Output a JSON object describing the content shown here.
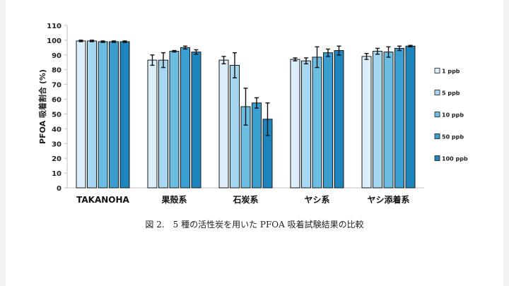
{
  "chart_data": {
    "type": "bar",
    "ylabel": "PFOA 吸着割合 (%)",
    "ylim": [
      0,
      110
    ],
    "yticks": [
      0,
      10,
      20,
      30,
      40,
      50,
      60,
      70,
      80,
      90,
      100,
      110
    ],
    "categories": [
      "TAKANOHA",
      "果殻系",
      "石炭系",
      "ヤシ系",
      "ヤシ添着系"
    ],
    "legend_position": "right",
    "grid": false,
    "series": [
      {
        "name": "1 ppb",
        "color": "#dbeefa",
        "values": [
          99.5,
          86.5,
          86.5,
          87.0,
          89.0
        ],
        "errors": [
          0.5,
          3.5,
          2.5,
          1.0,
          2.0
        ]
      },
      {
        "name": "5 ppb",
        "color": "#a7d6f0",
        "values": [
          99.5,
          86.5,
          83.0,
          86.0,
          92.5
        ],
        "errors": [
          0.5,
          5.0,
          8.5,
          2.0,
          2.0
        ]
      },
      {
        "name": "10 ppb",
        "color": "#6cbde2",
        "values": [
          99.0,
          92.5,
          55.0,
          88.5,
          92.0
        ],
        "errors": [
          0.5,
          0.5,
          12.5,
          7.0,
          3.5
        ]
      },
      {
        "name": "50 ppb",
        "color": "#3a9fd0",
        "values": [
          99.0,
          95.0,
          57.5,
          91.5,
          94.5
        ],
        "errors": [
          0.5,
          1.0,
          3.5,
          2.5,
          1.5
        ]
      },
      {
        "name": "100 ppb",
        "color": "#1e84bd",
        "values": [
          99.0,
          92.0,
          46.5,
          93.0,
          96.0
        ],
        "errors": [
          0.5,
          1.5,
          11.0,
          3.0,
          0.5
        ]
      }
    ]
  },
  "caption": "図 2.　5 種の活性炭を用いた PFOA 吸着試験結果の比較"
}
